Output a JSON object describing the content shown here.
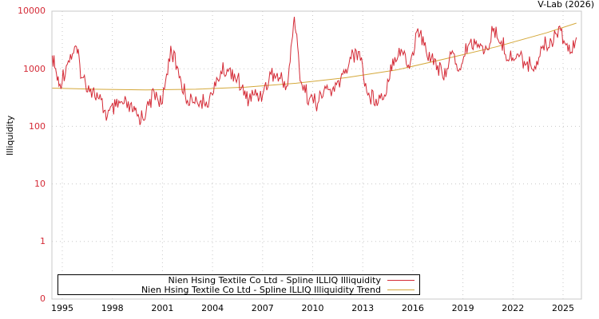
{
  "credit": "V-Lab (2026)",
  "chart_data": {
    "type": "line",
    "title": "",
    "xlabel": "",
    "ylabel": "Illiquidity",
    "yscale": "log",
    "ylim": [
      0,
      10000
    ],
    "y_ticks": [
      "10000",
      "1000",
      "100",
      "10",
      "1",
      "0"
    ],
    "x_ticks": [
      "1995",
      "1998",
      "2001",
      "2004",
      "2007",
      "2010",
      "2013",
      "2016",
      "2019",
      "2022",
      "2025"
    ],
    "grid": true,
    "legend_position": "bottom-left",
    "series": [
      {
        "name": "Nien Hsing Textile Co Ltd - Spline ILLIQ Illiquidity",
        "color": "#d42a36",
        "x": [
          1994.4,
          1994.8,
          1995.3,
          1995.8,
          1996.2,
          1996.7,
          1997.2,
          1997.7,
          1998.2,
          1998.7,
          1999.2,
          1999.6,
          2000.0,
          2000.5,
          2001.0,
          2001.5,
          2002.0,
          2002.5,
          2003.0,
          2003.5,
          2004.0,
          2004.5,
          2005.0,
          2005.5,
          2006.0,
          2006.5,
          2007.0,
          2007.5,
          2008.0,
          2008.5,
          2008.9,
          2009.3,
          2009.8,
          2010.3,
          2010.8,
          2011.3,
          2011.8,
          2012.3,
          2012.8,
          2013.3,
          2013.8,
          2014.3,
          2014.8,
          2015.3,
          2015.8,
          2016.3,
          2016.8,
          2017.3,
          2017.8,
          2018.3,
          2018.8,
          2019.3,
          2019.8,
          2020.3,
          2020.8,
          2021.3,
          2021.8,
          2022.3,
          2022.8,
          2023.3,
          2023.8,
          2024.3,
          2024.8,
          2025.3,
          2025.8
        ],
        "values": [
          1700,
          500,
          1200,
          2500,
          700,
          450,
          300,
          150,
          220,
          250,
          180,
          140,
          160,
          400,
          250,
          2500,
          700,
          280,
          330,
          250,
          350,
          900,
          1000,
          700,
          300,
          350,
          350,
          800,
          700,
          500,
          8000,
          600,
          300,
          250,
          450,
          400,
          800,
          1500,
          2000,
          350,
          300,
          350,
          1500,
          2200,
          1000,
          5000,
          2000,
          1500,
          700,
          1800,
          1000,
          2500,
          3000,
          2000,
          4500,
          3000,
          1500,
          1800,
          1200,
          1100,
          2500,
          3000,
          5500,
          2000,
          3500
        ]
      },
      {
        "name": "Nien Hsing Textile Co Ltd - Spline ILLIQ Illiquidity Trend",
        "color": "#d4a83a",
        "x": [
          1994.4,
          1997,
          2000,
          2003,
          2006,
          2009,
          2012,
          2015,
          2018,
          2021,
          2024,
          2025.8
        ],
        "values": [
          460,
          440,
          430,
          440,
          480,
          560,
          700,
          950,
          1500,
          2400,
          4200,
          6200
        ]
      }
    ]
  }
}
